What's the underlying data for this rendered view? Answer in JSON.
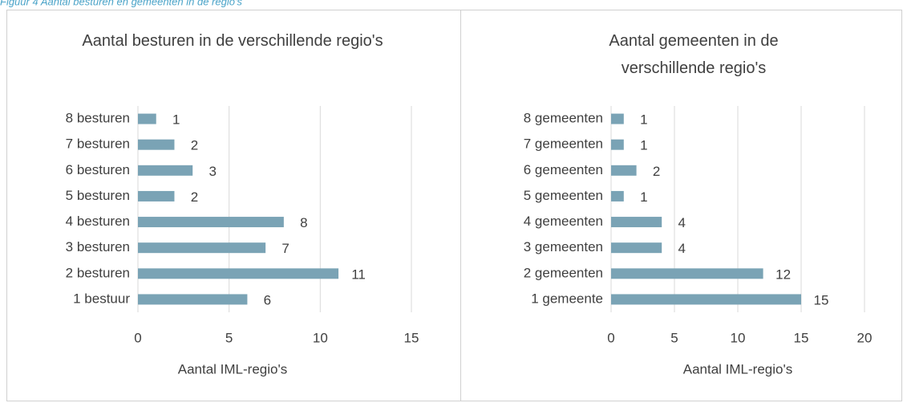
{
  "caption": "Figuur 4 Aantal besturen en gemeenten in de regio's",
  "chart_data": [
    {
      "type": "barh",
      "title": "Aantal besturen in de verschillende regio's",
      "categories": [
        "1 bestuur",
        "2 besturen",
        "3 besturen",
        "4 besturen",
        "5 besturen",
        "6 besturen",
        "7 besturen",
        "8 besturen"
      ],
      "values": [
        6,
        11,
        7,
        8,
        2,
        3,
        2,
        1
      ],
      "color": "#7aa3b5",
      "xlim": [
        0,
        15
      ],
      "xticks": [
        0,
        5,
        10,
        15
      ],
      "grid": true,
      "xlabel": "Aantal IML-regio's"
    },
    {
      "type": "barh",
      "title": "Aantal gemeenten in de verschillende regio's",
      "categories": [
        "1 gemeente",
        "2 gemeenten",
        "3 gemeenten",
        "4 gemeenten",
        "5 gemeenten",
        "6 gemeenten",
        "7 gemeenten",
        "8 gemeenten"
      ],
      "values": [
        15,
        12,
        4,
        4,
        1,
        2,
        1,
        1
      ],
      "color": "#7aa3b5",
      "xlim": [
        0,
        20
      ],
      "xticks": [
        0,
        5,
        10,
        15,
        20
      ],
      "grid": true,
      "xlabel": "Aantal IML-regio's"
    }
  ]
}
